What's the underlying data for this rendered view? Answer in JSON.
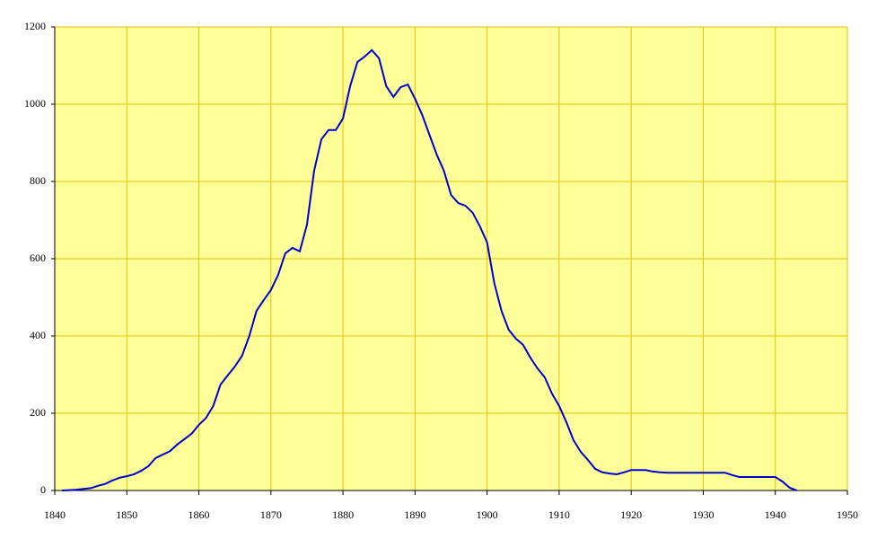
{
  "chart_data": {
    "type": "line",
    "x": [
      1841,
      1842,
      1843,
      1844,
      1845,
      1846,
      1847,
      1848,
      1849,
      1850,
      1851,
      1852,
      1853,
      1854,
      1855,
      1856,
      1857,
      1858,
      1859,
      1860,
      1861,
      1862,
      1863,
      1864,
      1865,
      1866,
      1867,
      1868,
      1869,
      1870,
      1871,
      1872,
      1873,
      1874,
      1875,
      1876,
      1877,
      1878,
      1879,
      1880,
      1881,
      1882,
      1883,
      1884,
      1885,
      1886,
      1887,
      1888,
      1889,
      1890,
      1891,
      1892,
      1893,
      1894,
      1895,
      1896,
      1897,
      1898,
      1899,
      1900,
      1901,
      1902,
      1903,
      1904,
      1905,
      1906,
      1907,
      1908,
      1909,
      1910,
      1911,
      1912,
      1913,
      1914,
      1915,
      1916,
      1917,
      1918,
      1919,
      1920,
      1921,
      1922,
      1923,
      1924,
      1925,
      1926,
      1927,
      1928,
      1929,
      1930,
      1931,
      1932,
      1933,
      1934,
      1935,
      1936,
      1937,
      1938,
      1939,
      1940,
      1941,
      1942,
      1943
    ],
    "series": [
      {
        "color": "#0000cc",
        "values": [
          0,
          1,
          2,
          4,
          6,
          12,
          17,
          26,
          33,
          37,
          42,
          51,
          63,
          84,
          93,
          102,
          119,
          133,
          147,
          170,
          188,
          219,
          274,
          298,
          321,
          349,
          400,
          465,
          493,
          519,
          558,
          614,
          628,
          619,
          688,
          828,
          909,
          933,
          933,
          963,
          1047,
          1109,
          1123,
          1140,
          1119,
          1047,
          1019,
          1044,
          1051,
          1014,
          972,
          921,
          870,
          828,
          765,
          744,
          737,
          719,
          684,
          642,
          537,
          465,
          416,
          393,
          377,
          344,
          316,
          293,
          251,
          219,
          177,
          130,
          100,
          79,
          56,
          47,
          44,
          42,
          47,
          53,
          53,
          53,
          49,
          47,
          46,
          46,
          46,
          46,
          46,
          46,
          46,
          46,
          46,
          40,
          35,
          35,
          35,
          35,
          35,
          35,
          23,
          7,
          0
        ]
      }
    ],
    "xlim": [
      1840,
      1950
    ],
    "xticks": [
      1840,
      1850,
      1860,
      1870,
      1880,
      1890,
      1900,
      1910,
      1920,
      1930,
      1940,
      1950
    ],
    "ylim": [
      0,
      1200
    ],
    "yticks": [
      0,
      200,
      400,
      600,
      800,
      1000,
      1200
    ],
    "grid": true,
    "background": "#ffff99",
    "grid_color": "#e6c300"
  }
}
